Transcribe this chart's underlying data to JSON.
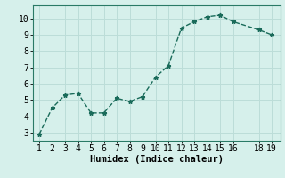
{
  "x": [
    1,
    2,
    3,
    4,
    5,
    6,
    7,
    8,
    9,
    10,
    11,
    12,
    13,
    14,
    15,
    16,
    18,
    19
  ],
  "y": [
    2.9,
    4.5,
    5.3,
    5.4,
    4.2,
    4.2,
    5.1,
    4.9,
    5.2,
    6.4,
    7.1,
    9.4,
    9.8,
    10.1,
    10.2,
    9.8,
    9.3,
    9.0
  ],
  "title": "",
  "xlabel": "Humidex (Indice chaleur)",
  "ylabel": "",
  "xlim": [
    0.5,
    19.7
  ],
  "ylim": [
    2.5,
    10.8
  ],
  "yticks": [
    3,
    4,
    5,
    6,
    7,
    8,
    9,
    10
  ],
  "xticks": [
    1,
    2,
    3,
    4,
    5,
    6,
    7,
    8,
    9,
    10,
    11,
    12,
    13,
    14,
    15,
    16,
    18,
    19
  ],
  "line_color": "#1a6b5a",
  "bg_color": "#d6f0eb",
  "grid_color": "#bcddd8",
  "marker": "*",
  "linewidth": 1.0,
  "markersize": 3.5,
  "tick_fontsize": 7,
  "xlabel_fontsize": 7.5
}
